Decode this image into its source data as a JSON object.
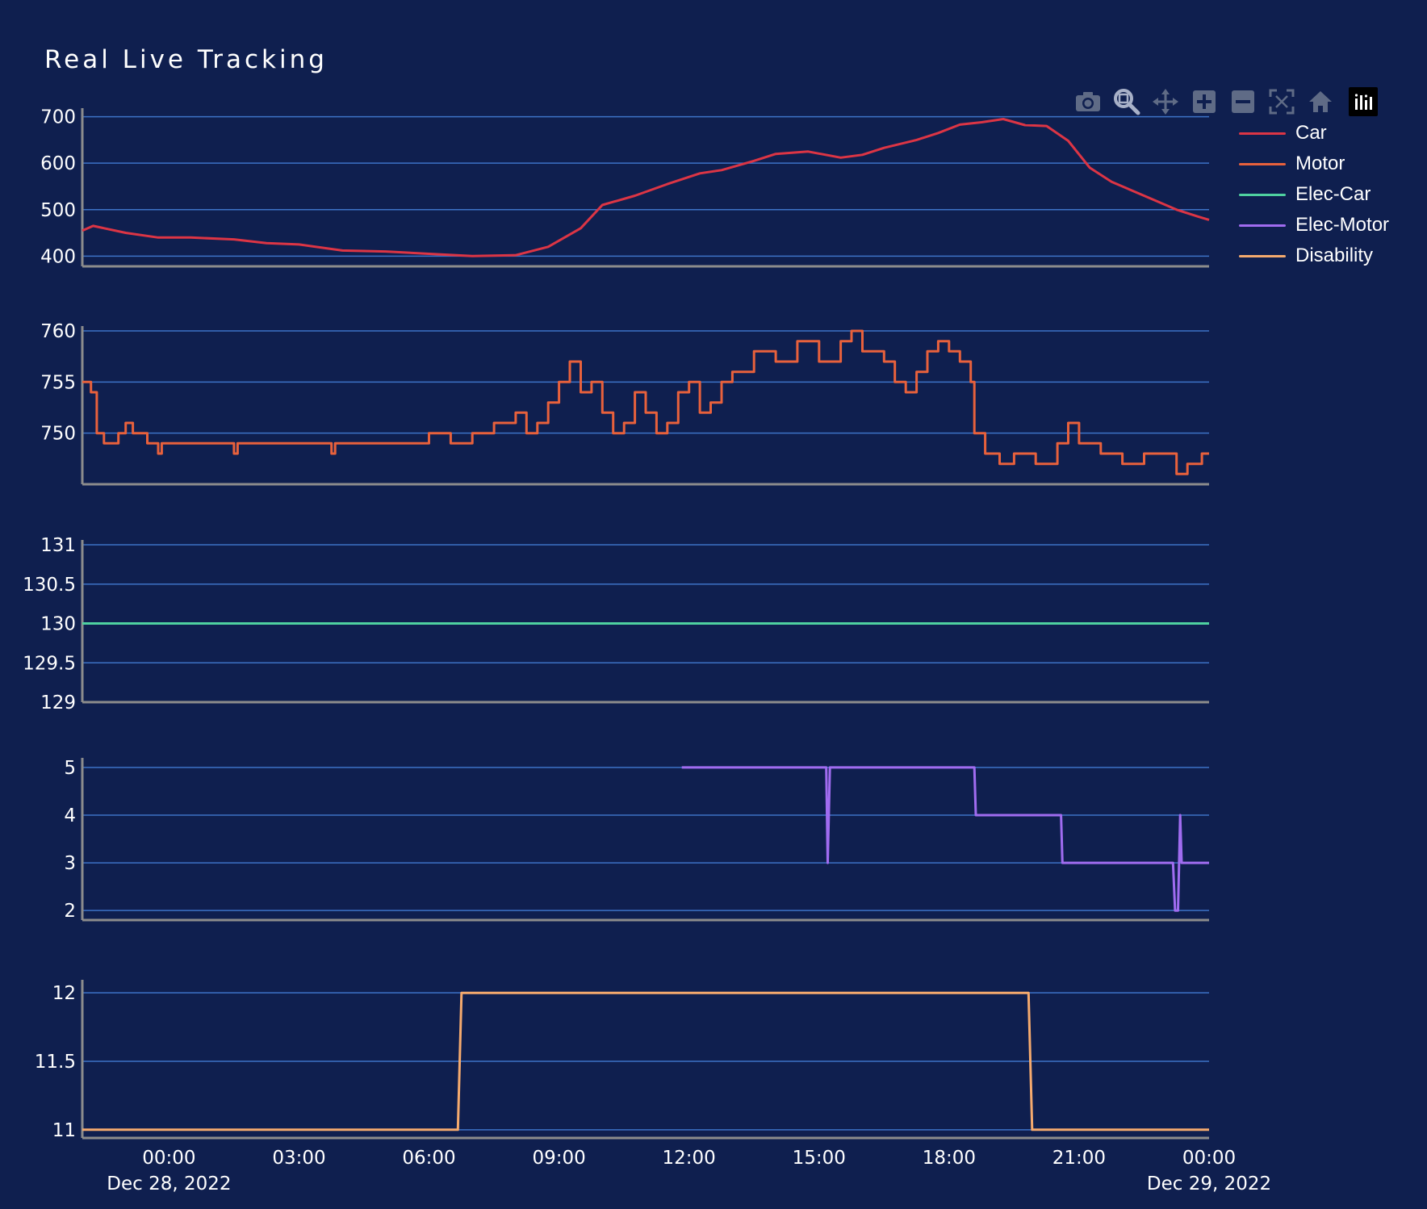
{
  "title": "Real Live Tracking",
  "colors": {
    "background": "#0f1f4f",
    "grid": "#3d72c6",
    "axis": "#8c8c8c",
    "icon": "#5f6b86",
    "icon_active": "#a8b1c8"
  },
  "modebar": [
    {
      "name": "camera-icon",
      "icon": "camera"
    },
    {
      "name": "zoom-icon",
      "icon": "zoom"
    },
    {
      "name": "pan-icon",
      "icon": "pan"
    },
    {
      "name": "zoom-in-icon",
      "icon": "plus"
    },
    {
      "name": "zoom-out-icon",
      "icon": "minus"
    },
    {
      "name": "autoscale-icon",
      "icon": "autoscale"
    },
    {
      "name": "reset-axes-icon",
      "icon": "home"
    },
    {
      "name": "plotly-logo-icon",
      "icon": "logo"
    }
  ],
  "legend": {
    "items": [
      {
        "label": "Car",
        "color": "#dc3545"
      },
      {
        "label": "Motor",
        "color": "#e8613c"
      },
      {
        "label": "Elec-Car",
        "color": "#4fd1a0"
      },
      {
        "label": "Elec-Motor",
        "color": "#a06cf0"
      },
      {
        "label": "Disability",
        "color": "#f5aa6e"
      }
    ]
  },
  "chart_data": {
    "type": "line",
    "title": "Real Live Tracking",
    "x_axis": {
      "type": "date",
      "range": [
        "2022-12-27T22:00",
        "2022-12-29T00:00"
      ],
      "tick_labels": [
        "00:00",
        "03:00",
        "06:00",
        "09:00",
        "12:00",
        "15:00",
        "18:00",
        "21:00",
        "00:00"
      ],
      "date_labels": [
        {
          "under_tick": 0,
          "text": "Dec 28, 2022"
        },
        {
          "under_tick": 8,
          "text": "Dec 29, 2022"
        }
      ]
    },
    "series": [
      {
        "name": "Car",
        "color": "#dc3545",
        "line_shape": "linear",
        "ylim": [
          378,
          708
        ],
        "yticks": [
          "400",
          "500",
          "600",
          "700"
        ],
        "ytick_values": [
          400,
          500,
          600,
          700
        ],
        "points": [
          [
            "2022-12-27T22:00",
            455
          ],
          [
            "2022-12-27T22:15",
            465
          ],
          [
            "2022-12-27T23:00",
            450
          ],
          [
            "2022-12-27T23:45",
            440
          ],
          [
            "2022-12-28T00:30",
            440
          ],
          [
            "2022-12-28T01:30",
            436
          ],
          [
            "2022-12-28T02:15",
            428
          ],
          [
            "2022-12-28T03:00",
            425
          ],
          [
            "2022-12-28T04:00",
            412
          ],
          [
            "2022-12-28T05:00",
            410
          ],
          [
            "2022-12-28T06:00",
            405
          ],
          [
            "2022-12-28T07:00",
            400
          ],
          [
            "2022-12-28T08:00",
            402
          ],
          [
            "2022-12-28T08:45",
            420
          ],
          [
            "2022-12-28T09:30",
            460
          ],
          [
            "2022-12-28T10:00",
            510
          ],
          [
            "2022-12-28T10:45",
            530
          ],
          [
            "2022-12-28T11:30",
            555
          ],
          [
            "2022-12-28T12:15",
            578
          ],
          [
            "2022-12-28T12:45",
            585
          ],
          [
            "2022-12-28T13:30",
            605
          ],
          [
            "2022-12-28T14:00",
            620
          ],
          [
            "2022-12-28T14:45",
            625
          ],
          [
            "2022-12-28T15:30",
            612
          ],
          [
            "2022-12-28T16:00",
            618
          ],
          [
            "2022-12-28T16:30",
            633
          ],
          [
            "2022-12-28T17:15",
            650
          ],
          [
            "2022-12-28T17:45",
            665
          ],
          [
            "2022-12-28T18:15",
            683
          ],
          [
            "2022-12-28T18:45",
            688
          ],
          [
            "2022-12-28T19:15",
            695
          ],
          [
            "2022-12-28T19:45",
            682
          ],
          [
            "2022-12-28T20:15",
            680
          ],
          [
            "2022-12-28T20:45",
            648
          ],
          [
            "2022-12-28T21:15",
            590
          ],
          [
            "2022-12-28T21:45",
            560
          ],
          [
            "2022-12-28T22:15",
            540
          ],
          [
            "2022-12-28T22:45",
            520
          ],
          [
            "2022-12-28T23:15",
            500
          ],
          [
            "2022-12-28T23:45",
            485
          ],
          [
            "2022-12-29T00:00",
            478
          ]
        ]
      },
      {
        "name": "Motor",
        "color": "#e8613c",
        "line_shape": "step",
        "ylim": [
          745,
          760
        ],
        "yticks": [
          "750",
          "755",
          "760"
        ],
        "ytick_values": [
          750,
          755,
          760
        ],
        "points": [
          [
            "2022-12-27T22:00",
            755
          ],
          [
            "2022-12-27T22:12",
            754
          ],
          [
            "2022-12-27T22:20",
            750
          ],
          [
            "2022-12-27T22:30",
            749
          ],
          [
            "2022-12-27T22:50",
            750
          ],
          [
            "2022-12-27T23:00",
            751
          ],
          [
            "2022-12-27T23:10",
            750
          ],
          [
            "2022-12-27T23:30",
            749
          ],
          [
            "2022-12-27T23:45",
            748
          ],
          [
            "2022-12-27T23:50",
            749
          ],
          [
            "2022-12-28T01:30",
            748
          ],
          [
            "2022-12-28T01:35",
            749
          ],
          [
            "2022-12-28T03:45",
            748
          ],
          [
            "2022-12-28T03:50",
            749
          ],
          [
            "2022-12-28T06:00",
            750
          ],
          [
            "2022-12-28T06:30",
            749
          ],
          [
            "2022-12-28T07:00",
            750
          ],
          [
            "2022-12-28T07:30",
            751
          ],
          [
            "2022-12-28T08:00",
            752
          ],
          [
            "2022-12-28T08:15",
            750
          ],
          [
            "2022-12-28T08:30",
            751
          ],
          [
            "2022-12-28T08:45",
            753
          ],
          [
            "2022-12-28T09:00",
            755
          ],
          [
            "2022-12-28T09:15",
            757
          ],
          [
            "2022-12-28T09:30",
            754
          ],
          [
            "2022-12-28T09:45",
            755
          ],
          [
            "2022-12-28T10:00",
            752
          ],
          [
            "2022-12-28T10:15",
            750
          ],
          [
            "2022-12-28T10:30",
            751
          ],
          [
            "2022-12-28T10:45",
            754
          ],
          [
            "2022-12-28T11:00",
            752
          ],
          [
            "2022-12-28T11:15",
            750
          ],
          [
            "2022-12-28T11:30",
            751
          ],
          [
            "2022-12-28T11:45",
            754
          ],
          [
            "2022-12-28T12:00",
            755
          ],
          [
            "2022-12-28T12:15",
            752
          ],
          [
            "2022-12-28T12:30",
            753
          ],
          [
            "2022-12-28T12:45",
            755
          ],
          [
            "2022-12-28T13:00",
            756
          ],
          [
            "2022-12-28T13:30",
            758
          ],
          [
            "2022-12-28T14:00",
            757
          ],
          [
            "2022-12-28T14:30",
            759
          ],
          [
            "2022-12-28T15:00",
            757
          ],
          [
            "2022-12-28T15:30",
            759
          ],
          [
            "2022-12-28T15:45",
            760
          ],
          [
            "2022-12-28T16:00",
            758
          ],
          [
            "2022-12-28T16:30",
            757
          ],
          [
            "2022-12-28T16:45",
            755
          ],
          [
            "2022-12-28T17:00",
            754
          ],
          [
            "2022-12-28T17:15",
            756
          ],
          [
            "2022-12-28T17:30",
            758
          ],
          [
            "2022-12-28T17:45",
            759
          ],
          [
            "2022-12-28T18:00",
            758
          ],
          [
            "2022-12-28T18:15",
            757
          ],
          [
            "2022-12-28T18:30",
            755
          ],
          [
            "2022-12-28T18:35",
            750
          ],
          [
            "2022-12-28T18:50",
            748
          ],
          [
            "2022-12-28T19:10",
            747
          ],
          [
            "2022-12-28T19:30",
            748
          ],
          [
            "2022-12-28T20:00",
            747
          ],
          [
            "2022-12-28T20:30",
            749
          ],
          [
            "2022-12-28T20:45",
            751
          ],
          [
            "2022-12-28T21:00",
            749
          ],
          [
            "2022-12-28T21:30",
            748
          ],
          [
            "2022-12-28T22:00",
            747
          ],
          [
            "2022-12-28T22:30",
            748
          ],
          [
            "2022-12-28T23:15",
            746
          ],
          [
            "2022-12-28T23:30",
            747
          ],
          [
            "2022-12-28T23:50",
            748
          ],
          [
            "2022-12-29T00:00",
            748
          ]
        ]
      },
      {
        "name": "Elec-Car",
        "color": "#4fd1a0",
        "line_shape": "linear",
        "ylim": [
          129,
          131
        ],
        "yticks": [
          "129",
          "129.5",
          "130",
          "130.5",
          "131"
        ],
        "ytick_values": [
          129,
          129.5,
          130,
          130.5,
          131
        ],
        "points": [
          [
            "2022-12-27T22:00",
            130
          ],
          [
            "2022-12-29T00:00",
            130
          ]
        ]
      },
      {
        "name": "Elec-Motor",
        "color": "#a06cf0",
        "line_shape": "linear",
        "ylim": [
          1.8,
          5.1
        ],
        "yticks": [
          "2",
          "3",
          "4",
          "5"
        ],
        "ytick_values": [
          2,
          3,
          4,
          5
        ],
        "points": [
          [
            "2022-12-28T11:50",
            5
          ],
          [
            "2022-12-28T15:10",
            5
          ],
          [
            "2022-12-28T15:12",
            3
          ],
          [
            "2022-12-28T15:15",
            5
          ],
          [
            "2022-12-28T18:35",
            5
          ],
          [
            "2022-12-28T18:37",
            4
          ],
          [
            "2022-12-28T20:35",
            4
          ],
          [
            "2022-12-28T20:37",
            3
          ],
          [
            "2022-12-28T23:10",
            3
          ],
          [
            "2022-12-28T23:13",
            2
          ],
          [
            "2022-12-28T23:17",
            2
          ],
          [
            "2022-12-28T23:20",
            4
          ],
          [
            "2022-12-28T23:22",
            3
          ],
          [
            "2022-12-29T00:00",
            3
          ]
        ]
      },
      {
        "name": "Disability",
        "color": "#f5aa6e",
        "line_shape": "linear",
        "ylim": [
          10.94,
          12.06
        ],
        "yticks": [
          "11",
          "11.5",
          "12"
        ],
        "ytick_values": [
          11,
          11.5,
          12
        ],
        "points": [
          [
            "2022-12-27T22:00",
            11
          ],
          [
            "2022-12-28T06:40",
            11
          ],
          [
            "2022-12-28T06:45",
            12
          ],
          [
            "2022-12-28T19:50",
            12
          ],
          [
            "2022-12-28T19:55",
            11
          ],
          [
            "2022-12-29T00:00",
            11
          ]
        ]
      }
    ]
  }
}
